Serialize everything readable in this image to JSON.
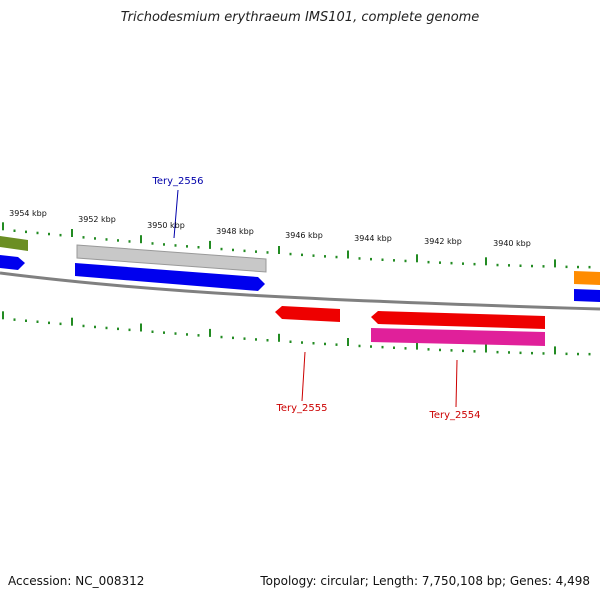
{
  "title": "Trichodesmium erythraeum IMS101, complete genome",
  "footer": {
    "accession": "Accession: NC_008312",
    "summary": "Topology: circular; Length: 7,750,108 bp; Genes: 4,498"
  },
  "ruler_labels": [
    "3954 kbp",
    "3952 kbp",
    "3950 kbp",
    "3948 kbp",
    "3946 kbp",
    "3944 kbp",
    "3942 kbp",
    "3940 kbp"
  ],
  "gene_labels": [
    {
      "name": "Tery_2556",
      "color": "#0000aa"
    },
    {
      "name": "Tery_2555",
      "color": "#cc0000"
    },
    {
      "name": "Tery_2554",
      "color": "#cc0000"
    }
  ],
  "colors": {
    "backbone": "#808080",
    "ticks": "#228b22",
    "blue": "#0000ee",
    "gray": "#c0c0c0",
    "olive": "#6b8e23",
    "red": "#ee0000",
    "magenta": "#e0209a",
    "orange": "#ff8c00"
  }
}
